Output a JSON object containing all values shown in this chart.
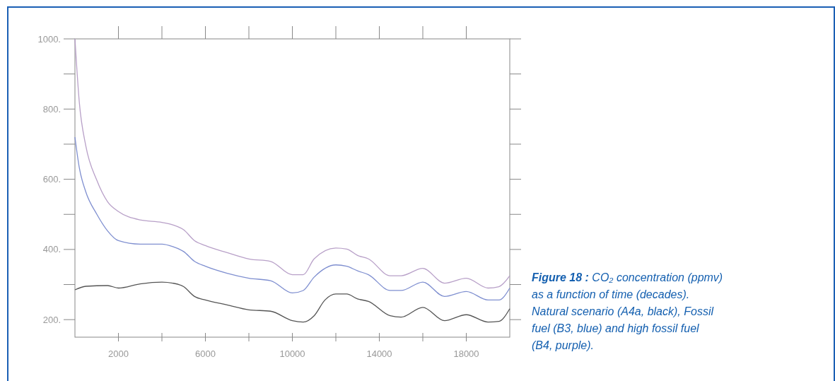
{
  "chart_data": {
    "type": "line",
    "annotations": [
      "Figure 18 : CO₂ concentration (ppmv) as a function of time (decades). Natural scenario (A4a, black), Fossil fuel (B3, blue) and high fossil fuel (B4, purple)."
    ],
    "xlim": [
      0,
      20000
    ],
    "xticks": [
      {
        "value": 2000,
        "label": "2000"
      },
      {
        "value": 4000,
        "label": null
      },
      {
        "value": 6000,
        "label": "6000"
      },
      {
        "value": 8000,
        "label": null
      },
      {
        "value": 10000,
        "label": "10000"
      },
      {
        "value": 12000,
        "label": null
      },
      {
        "value": 14000,
        "label": "14000"
      },
      {
        "value": 16000,
        "label": null
      },
      {
        "value": 18000,
        "label": "18000"
      }
    ],
    "ylim": [
      150,
      1000
    ],
    "yticks": [
      {
        "value": 200,
        "label": "200."
      },
      {
        "value": 300,
        "label": null
      },
      {
        "value": 400,
        "label": "400."
      },
      {
        "value": 500,
        "label": null
      },
      {
        "value": 600,
        "label": "600."
      },
      {
        "value": 700,
        "label": null
      },
      {
        "value": 800,
        "label": "800."
      },
      {
        "value": 900,
        "label": null
      },
      {
        "value": 1000,
        "label": "1000."
      }
    ],
    "marker": "none",
    "line_style": "solid",
    "series": [
      {
        "color": "#b8a0c8",
        "x": [
          0,
          200,
          500,
          1000,
          1500,
          2000,
          3000,
          4000,
          4500,
          5000,
          5500,
          6000,
          7000,
          8000,
          9000,
          10000,
          10500,
          11000,
          12000,
          12500,
          13000,
          13500,
          14500,
          15000,
          16000,
          17000,
          18000,
          19000,
          19500,
          20000
        ],
        "values": [
          1000,
          820,
          695,
          598,
          536,
          508,
          484,
          477,
          470,
          456,
          425,
          411,
          391,
          373,
          366,
          328,
          328,
          373,
          404,
          401,
          383,
          373,
          325,
          325,
          346,
          304,
          318,
          290,
          294,
          325
        ]
      },
      {
        "color": "#7f8fd0",
        "x": [
          0,
          200,
          500,
          1000,
          1500,
          2000,
          3000,
          4000,
          4500,
          5000,
          5500,
          6000,
          7000,
          8000,
          9000,
          10000,
          10500,
          11000,
          12000,
          12500,
          13000,
          13500,
          14500,
          15000,
          16000,
          17000,
          18000,
          19000,
          19500,
          20000
        ],
        "values": [
          720,
          633,
          564,
          501,
          453,
          425,
          415,
          415,
          408,
          394,
          366,
          352,
          332,
          318,
          311,
          276,
          283,
          321,
          356,
          352,
          339,
          328,
          283,
          283,
          307,
          266,
          280,
          256,
          256,
          290
        ]
      },
      {
        "color": "#555555",
        "x": [
          0,
          500,
          1500,
          2000,
          3000,
          4000,
          4500,
          5000,
          5500,
          6000,
          7000,
          8000,
          9000,
          10000,
          10500,
          11000,
          11500,
          12000,
          12500,
          13000,
          13500,
          14500,
          15000,
          16000,
          17000,
          18000,
          19000,
          19500,
          20000
        ],
        "values": [
          285,
          295,
          297,
          290,
          302,
          307,
          304,
          294,
          266,
          256,
          242,
          228,
          224,
          197,
          193,
          211,
          256,
          273,
          273,
          259,
          252,
          211,
          207,
          235,
          197,
          214,
          193,
          195,
          231
        ]
      }
    ]
  }
}
